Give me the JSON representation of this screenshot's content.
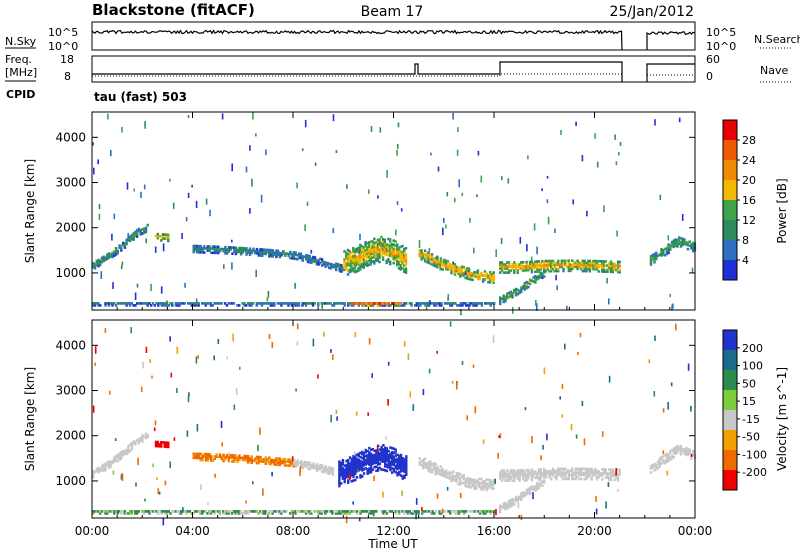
{
  "header": {
    "station": "Blackstone (fitACF)",
    "beam": "Beam 17",
    "date": "25/Jan/2012",
    "cpid_label": "CPID",
    "cpid_value": "tau (fast) 503"
  },
  "small_panels": {
    "nsky": {
      "label": "N.Sky",
      "right_label": "N.Search",
      "left_ticks": [
        "10^5",
        "10^0"
      ],
      "right_ticks": [
        "10^5",
        "10^0"
      ]
    },
    "freq": {
      "label_line1": "Freq.",
      "label_line2": "[MHz]",
      "right_label": "Nave",
      "left_ticks": [
        "18",
        "8"
      ],
      "right_ticks": [
        "60",
        "0"
      ]
    }
  },
  "colors": {
    "power_scale": [
      "#1f2fd6",
      "#2e6fbf",
      "#2e8a5f",
      "#3fa34a",
      "#f4b800",
      "#f08a00",
      "#ee5a00",
      "#e80000"
    ],
    "velocity_scale": [
      "#2233cc",
      "#1d6b8c",
      "#2e8a4e",
      "#7ccc3c",
      "#c8c8c8",
      "#f4a000",
      "#f06a00",
      "#ee0000"
    ],
    "ground_scatter": "#c8c8c8"
  },
  "chart_data": [
    {
      "type": "heatmap",
      "name": "power",
      "xlabel": "",
      "ylabel": "Slant Range [km]",
      "x_ticks": [
        "00:00",
        "04:00",
        "08:00",
        "12:00",
        "16:00",
        "20:00",
        "00:00"
      ],
      "y_ticks": [
        "1000",
        "2000",
        "3000",
        "4000"
      ],
      "xlim": [
        0,
        24
      ],
      "ylim": [
        180,
        4560
      ],
      "colorbar": {
        "label": "Power [dB]",
        "ticks": [
          "28",
          "24",
          "20",
          "16",
          "12",
          "8",
          "4"
        ],
        "range": [
          0,
          32
        ]
      },
      "features": [
        {
          "desc": "early echo band",
          "t": [
            0.0,
            0.6,
            1.2,
            1.8,
            2.2
          ],
          "range": [
            1150,
            1350,
            1600,
            1900,
            2000
          ],
          "width": 170,
          "level": 11
        },
        {
          "desc": "patch near 02:45",
          "t": [
            2.5,
            2.8,
            3.0
          ],
          "range": [
            1790,
            1780,
            1770
          ],
          "width": 160,
          "level": 18
        },
        {
          "desc": "main band",
          "t": [
            4.0,
            5.0,
            6.0,
            7.0,
            8.0,
            9.0,
            10.0
          ],
          "range": [
            1530,
            1510,
            1480,
            1440,
            1390,
            1250,
            1080
          ],
          "width": 170,
          "level": 9
        },
        {
          "desc": "midday enhancement",
          "t": [
            10.0,
            10.5,
            11.0,
            11.5,
            12.0,
            12.5
          ],
          "range": [
            1200,
            1300,
            1450,
            1520,
            1430,
            1250
          ],
          "width": 560,
          "level": 19
        },
        {
          "desc": "post-noon band",
          "t": [
            13.0,
            13.8,
            14.5,
            15.2,
            16.0
          ],
          "range": [
            1420,
            1200,
            1040,
            930,
            880
          ],
          "width": 230,
          "level": 21
        },
        {
          "desc": "evening band",
          "t": [
            16.2,
            17.0,
            18.0,
            19.0,
            20.0,
            21.0
          ],
          "range": [
            1120,
            1120,
            1150,
            1160,
            1150,
            1130
          ],
          "width": 260,
          "level": 20
        },
        {
          "desc": "rising echoes",
          "t": [
            16.2,
            16.8,
            17.4,
            18.0
          ],
          "range": [
            380,
            560,
            780,
            1000
          ],
          "width": 160,
          "level": 14
        },
        {
          "desc": "near-range echo strip",
          "t": [
            0.0,
            6.0,
            12.0,
            16.0
          ],
          "range": [
            300,
            300,
            300,
            300
          ],
          "width": 70,
          "level": 8
        },
        {
          "desc": "near-range enhancement",
          "t": [
            10.3,
            11.0,
            11.7,
            12.3
          ],
          "range": [
            300,
            300,
            300,
            300
          ],
          "width": 80,
          "level": 27
        },
        {
          "desc": "late band",
          "t": [
            22.2,
            22.8,
            23.3,
            24.0
          ],
          "range": [
            1280,
            1500,
            1700,
            1550
          ],
          "width": 220,
          "level": 13
        }
      ]
    },
    {
      "type": "heatmap",
      "name": "velocity",
      "xlabel": "Time UT",
      "ylabel": "Slant Range [km]",
      "x_ticks": [
        "00:00",
        "04:00",
        "08:00",
        "12:00",
        "16:00",
        "20:00",
        "00:00"
      ],
      "y_ticks": [
        "1000",
        "2000",
        "3000",
        "4000"
      ],
      "xlim": [
        0,
        24
      ],
      "ylim": [
        180,
        4560
      ],
      "colorbar": {
        "label": "Velocity [m s^-1]",
        "ticks": [
          "200",
          "100",
          "50",
          "15",
          "-15",
          "-50",
          "-100",
          "-200"
        ],
        "range": [
          -250,
          250
        ]
      },
      "features": [
        {
          "desc": "early ground scatter",
          "t": [
            0.0,
            0.6,
            1.2,
            1.8,
            2.2
          ],
          "range": [
            1150,
            1350,
            1600,
            1900,
            2000
          ],
          "width": 170,
          "ground": true
        },
        {
          "desc": "strong negative patch",
          "t": [
            2.5,
            2.8,
            3.0
          ],
          "range": [
            1790,
            1780,
            1770
          ],
          "width": 160,
          "value": -230
        },
        {
          "desc": "main band negative",
          "t": [
            4.0,
            5.0,
            6.0,
            7.0,
            8.0
          ],
          "range": [
            1530,
            1510,
            1480,
            1440,
            1390
          ],
          "width": 160,
          "value": -70
        },
        {
          "desc": "main band ground scatter",
          "t": [
            8.0,
            8.6,
            9.2,
            9.6
          ],
          "range": [
            1390,
            1330,
            1260,
            1190
          ],
          "width": 160,
          "ground": true
        },
        {
          "desc": "midday positive flows",
          "t": [
            9.8,
            10.5,
            11.0,
            11.5,
            12.0,
            12.5
          ],
          "range": [
            1150,
            1300,
            1450,
            1520,
            1430,
            1250
          ],
          "width": 560,
          "value": 210
        },
        {
          "desc": "post-noon ground scatter",
          "t": [
            13.0,
            13.8,
            14.5,
            15.2,
            16.0
          ],
          "range": [
            1420,
            1200,
            1040,
            930,
            880
          ],
          "width": 230,
          "ground": true
        },
        {
          "desc": "evening ground scatter",
          "t": [
            16.2,
            17.0,
            18.0,
            19.0,
            20.0,
            21.0
          ],
          "range": [
            1120,
            1120,
            1150,
            1160,
            1150,
            1130
          ],
          "width": 260,
          "ground": true
        },
        {
          "desc": "rising ground scatter",
          "t": [
            16.2,
            16.8,
            17.4,
            18.0
          ],
          "range": [
            380,
            560,
            780,
            1000
          ],
          "width": 160,
          "ground": true
        },
        {
          "desc": "near-range low velocity strip",
          "t": [
            0.0,
            6.0,
            12.0,
            16.0
          ],
          "range": [
            300,
            300,
            300,
            300
          ],
          "width": 70,
          "value": 30
        },
        {
          "desc": "late ground scatter",
          "t": [
            22.2,
            22.8,
            23.3,
            24.0
          ],
          "range": [
            1280,
            1500,
            1700,
            1550
          ],
          "width": 220,
          "ground": true
        }
      ]
    }
  ]
}
